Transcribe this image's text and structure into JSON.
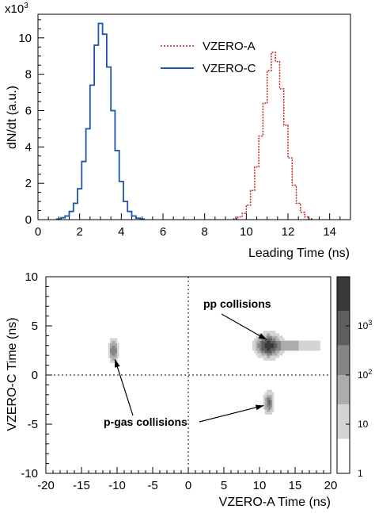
{
  "chart_data": [
    {
      "type": "line",
      "multiplier": "x10",
      "multiplier_exp": "3",
      "xlabel": "Leading Time (ns)",
      "ylabel": "dN/dt (a.u.)",
      "xlim": [
        0,
        15
      ],
      "ylim": [
        0,
        11.3
      ],
      "xticks": [
        "0",
        "2",
        "4",
        "6",
        "8",
        "10",
        "12",
        "14"
      ],
      "yticks": [
        "0",
        "2",
        "4",
        "6",
        "8",
        "10"
      ],
      "legend": {
        "placement": "top-right"
      },
      "series": [
        {
          "name": "VZERO-A",
          "color": "#cc2222",
          "style": "dotted",
          "x": [
            9.5,
            9.7,
            9.9,
            10.1,
            10.3,
            10.5,
            10.7,
            10.9,
            11.1,
            11.3,
            11.5,
            11.7,
            11.9,
            12.1,
            12.3,
            12.5,
            12.7,
            12.9,
            13.1
          ],
          "y": [
            0.05,
            0.15,
            0.35,
            0.8,
            1.6,
            2.9,
            4.6,
            6.4,
            8.2,
            9.2,
            8.7,
            7.2,
            5.2,
            3.4,
            1.9,
            0.9,
            0.4,
            0.15,
            0.05
          ]
        },
        {
          "name": "VZERO-C",
          "color": "#1a55b0",
          "style": "solid",
          "x": [
            1.0,
            1.2,
            1.4,
            1.6,
            1.8,
            2.0,
            2.2,
            2.4,
            2.6,
            2.8,
            3.0,
            3.2,
            3.4,
            3.6,
            3.8,
            4.0,
            4.2,
            4.4,
            4.6,
            4.8,
            5.0
          ],
          "y": [
            0.03,
            0.1,
            0.2,
            0.45,
            0.9,
            1.7,
            3.2,
            5.0,
            7.4,
            9.6,
            10.8,
            10.2,
            8.4,
            6.0,
            3.8,
            2.1,
            1.0,
            0.45,
            0.2,
            0.08,
            0.03
          ]
        }
      ]
    },
    {
      "type": "heatmap",
      "xlabel": "VZERO-A Time (ns)",
      "ylabel": "VZERO-C Time (ns)",
      "xlim": [
        -20,
        20
      ],
      "ylim": [
        -10,
        10
      ],
      "xticks": [
        "-20",
        "-15",
        "-10",
        "-5",
        "0",
        "5",
        "10",
        "15",
        "20"
      ],
      "yticks": [
        "-10",
        "-5",
        "0",
        "5",
        "10"
      ],
      "grid_dashed_at_zero": true,
      "colorbar": {
        "scale": "log",
        "tick_labels": [
          {
            "label": "10",
            "exp": "3"
          },
          {
            "label": "10",
            "exp": "2"
          },
          {
            "label": "10",
            "exp": ""
          },
          {
            "label": "1",
            "exp": ""
          }
        ],
        "bands": [
          {
            "color": "#3a3a3a",
            "lo": 3.3,
            "hi": 4.0
          },
          {
            "color": "#5e5e5e",
            "lo": 2.6,
            "hi": 3.3
          },
          {
            "color": "#858585",
            "lo": 2.0,
            "hi": 2.6
          },
          {
            "color": "#acacac",
            "lo": 1.4,
            "hi": 2.0
          },
          {
            "color": "#d4d4d4",
            "lo": 0.7,
            "hi": 1.4
          },
          {
            "color": "#ffffff",
            "lo": 0.0,
            "hi": 0.7
          }
        ]
      },
      "clusters": [
        {
          "name": "pp",
          "x": 11.3,
          "y": 3.0,
          "sx": 1.3,
          "sy": 0.8,
          "peak": 3.8,
          "tail_to": 18.5
        },
        {
          "name": "gas-C",
          "x": -10.5,
          "y": 2.5,
          "sx": 0.5,
          "sy": 0.8,
          "peak": 2.7,
          "tail_to": null
        },
        {
          "name": "gas-A",
          "x": 11.3,
          "y": -2.8,
          "sx": 0.5,
          "sy": 0.8,
          "peak": 2.7,
          "tail_to": null
        }
      ],
      "annotations": [
        {
          "text": "pp collisions",
          "arrow_to": [
            11.0,
            3.6
          ]
        },
        {
          "text": "p-gas collisions",
          "arrow_to": [
            -10.3,
            1.6
          ]
        },
        {
          "text": "p-gas collisions",
          "arrow_to": [
            10.6,
            -3.1
          ]
        }
      ]
    }
  ]
}
